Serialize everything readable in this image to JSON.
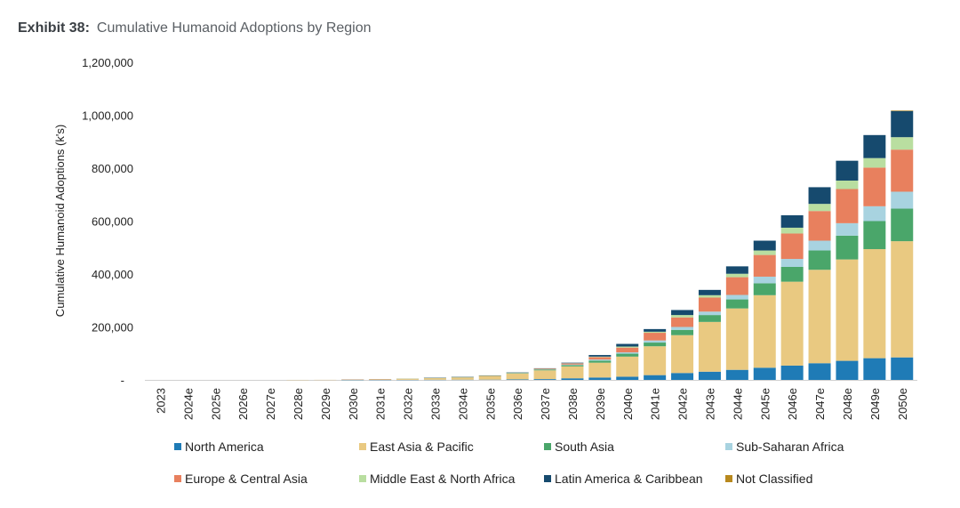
{
  "header": {
    "exhibit_label": "Exhibit 38:",
    "title": "Cumulative Humanoid Adoptions by Region"
  },
  "chart_data": {
    "type": "bar",
    "stacked": true,
    "title": "Cumulative Humanoid Adoptions by Region",
    "xlabel": "",
    "ylabel": "Cumulative Humanoid Adoptions (k's)",
    "ylim": [
      0,
      1200000
    ],
    "yticks": [
      0,
      200000,
      400000,
      600000,
      800000,
      1000000,
      1200000
    ],
    "ytick_labels": [
      "-",
      "200,000",
      "400,000",
      "600,000",
      "800,000",
      "1,000,000",
      "1,200,000"
    ],
    "grid": false,
    "legend_position": "bottom",
    "categories": [
      "2023",
      "2024e",
      "2025e",
      "2026e",
      "2027e",
      "2028e",
      "2029e",
      "2030e",
      "2031e",
      "2032e",
      "2033e",
      "2034e",
      "2035e",
      "2036e",
      "2037e",
      "2038e",
      "2039e",
      "2040e",
      "2041e",
      "2042e",
      "2043e",
      "2044e",
      "2045e",
      "2046e",
      "2047e",
      "2048e",
      "2049e",
      "2050e"
    ],
    "series": [
      {
        "name": "North America",
        "color": "#1f7bb6",
        "values": [
          0,
          0,
          0,
          0,
          0,
          0,
          0,
          100,
          200,
          300,
          500,
          700,
          1000,
          2000,
          3000,
          6000,
          9000,
          12000,
          18000,
          26000,
          31000,
          38000,
          46000,
          54000,
          63000,
          72000,
          82000,
          85000
        ]
      },
      {
        "name": "East Asia & Pacific",
        "color": "#e9c981",
        "values": [
          0,
          0,
          0,
          0,
          0,
          100,
          300,
          800,
          2600,
          4300,
          6800,
          9000,
          14000,
          22000,
          33000,
          45000,
          56000,
          76000,
          109000,
          143000,
          188000,
          232000,
          274000,
          317000,
          353000,
          383000,
          412000,
          439000
        ]
      },
      {
        "name": "South Asia",
        "color": "#4aa66a",
        "values": [
          0,
          0,
          0,
          0,
          0,
          0,
          0,
          50,
          100,
          200,
          300,
          700,
          1000,
          2000,
          3000,
          5000,
          8000,
          11000,
          14000,
          20000,
          26000,
          34000,
          45000,
          56000,
          73000,
          90000,
          106000,
          123000
        ]
      },
      {
        "name": "Sub-Saharan Africa",
        "color": "#a8d3e0",
        "values": [
          0,
          0,
          0,
          0,
          0,
          0,
          0,
          0,
          50,
          50,
          100,
          100,
          300,
          500,
          1000,
          2000,
          4000,
          5000,
          8000,
          11000,
          13000,
          17000,
          25000,
          30000,
          37000,
          47000,
          56000,
          64000
        ]
      },
      {
        "name": "Europe & Central Asia",
        "color": "#e8805e",
        "values": [
          0,
          0,
          0,
          0,
          0,
          0,
          0,
          50,
          50,
          100,
          200,
          300,
          500,
          1000,
          2000,
          4000,
          9000,
          18000,
          29000,
          36000,
          53000,
          67000,
          82000,
          96000,
          112000,
          129000,
          146000,
          159000
        ]
      },
      {
        "name": "Middle East & North Africa",
        "color": "#b9dea0",
        "values": [
          0,
          0,
          0,
          0,
          0,
          0,
          0,
          0,
          0,
          50,
          50,
          100,
          100,
          300,
          1000,
          1000,
          2000,
          4000,
          4000,
          9000,
          9000,
          13000,
          17000,
          22000,
          27000,
          32000,
          36000,
          47000
        ]
      },
      {
        "name": "Latin America & Caribbean",
        "color": "#164a6e",
        "values": [
          0,
          0,
          0,
          0,
          0,
          0,
          0,
          0,
          0,
          0,
          50,
          100,
          100,
          200,
          1000,
          2000,
          6000,
          10000,
          10000,
          19000,
          20000,
          28000,
          37000,
          47000,
          63000,
          75000,
          87000,
          99000
        ]
      },
      {
        "name": "Not Classified",
        "color": "#b8891e",
        "values": [
          0,
          0,
          0,
          0,
          0,
          0,
          0,
          0,
          0,
          0,
          0,
          0,
          0,
          0,
          0,
          0,
          0,
          0,
          0,
          0,
          0,
          0,
          0,
          0,
          0,
          0,
          0,
          2000
        ]
      }
    ]
  }
}
